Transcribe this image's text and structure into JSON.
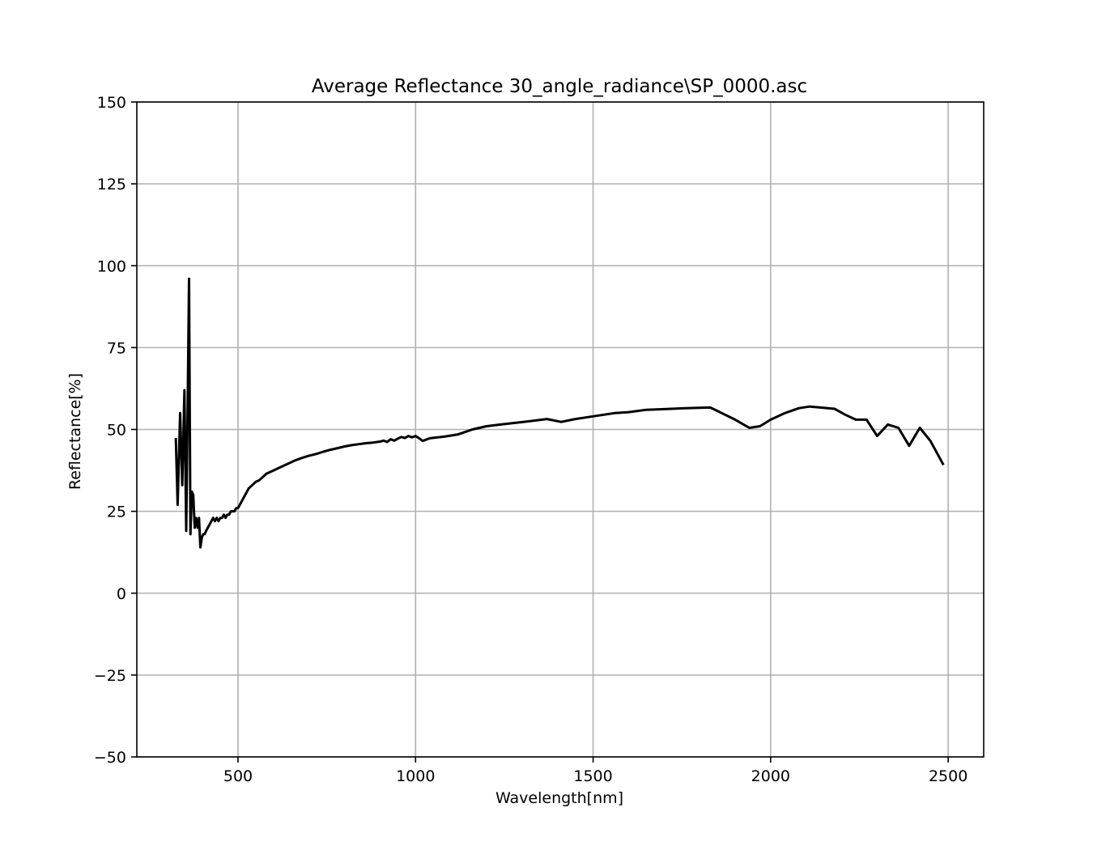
{
  "chart_data": {
    "type": "line",
    "title": "Average Reflectance 30_angle_radiance\\SP_0000.asc",
    "xlabel": "Wavelength[nm]",
    "ylabel": "Reflectance[%]",
    "xlim": [
      215,
      2600
    ],
    "ylim": [
      -50,
      150
    ],
    "xticks": [
      500,
      1000,
      1500,
      2000,
      2500
    ],
    "xtick_labels": [
      "500",
      "1000",
      "1500",
      "2000",
      "2500"
    ],
    "yticks": [
      -50,
      -25,
      0,
      25,
      50,
      75,
      100,
      125,
      150
    ],
    "ytick_labels": [
      "−50",
      "−25",
      "0",
      "25",
      "50",
      "75",
      "100",
      "125",
      "150"
    ],
    "grid": true,
    "line_color": "#000000",
    "series": [
      {
        "x": [
          325,
          330,
          337,
          343,
          349,
          354,
          358,
          362,
          366,
          370,
          374,
          378,
          382,
          386,
          390,
          394,
          398,
          402,
          406,
          410,
          415,
          420,
          425,
          430,
          435,
          440,
          445,
          450,
          455,
          460,
          465,
          470,
          475,
          480,
          485,
          490,
          495,
          500,
          505,
          510,
          515,
          520,
          525,
          530,
          540,
          550,
          560,
          570,
          580,
          590,
          600,
          620,
          640,
          660,
          680,
          700,
          720,
          740,
          760,
          780,
          800,
          820,
          840,
          860,
          880,
          900,
          910,
          920,
          930,
          940,
          950,
          960,
          970,
          980,
          990,
          1000,
          1010,
          1020,
          1040,
          1080,
          1120,
          1160,
          1200,
          1240,
          1280,
          1320,
          1370,
          1410,
          1450,
          1500,
          1560,
          1600,
          1650,
          1700,
          1760,
          1800,
          1830,
          1900,
          1940,
          1970,
          2000,
          2040,
          2080,
          2110,
          2140,
          2180,
          2210,
          2240,
          2270,
          2300,
          2330,
          2360,
          2390,
          2420,
          2450,
          2485
        ],
        "y": [
          47,
          27,
          55,
          33,
          62,
          19,
          55,
          96,
          18,
          31,
          30,
          20,
          23,
          20,
          23,
          14,
          17,
          18,
          18,
          19,
          20,
          21,
          22,
          23,
          22,
          23,
          22,
          23,
          23,
          24,
          23,
          24,
          24,
          25,
          25,
          25,
          26,
          26,
          27,
          28,
          29,
          30,
          31,
          32,
          33,
          34,
          34.5,
          35.5,
          36.5,
          37,
          37.5,
          38.5,
          39.5,
          40.5,
          41.3,
          42,
          42.5,
          43.2,
          43.8,
          44.3,
          44.8,
          45.2,
          45.5,
          45.8,
          46,
          46.3,
          46.6,
          46.2,
          47,
          46.6,
          47.2,
          47.7,
          47.4,
          48,
          47.6,
          48,
          47.3,
          46.5,
          47.3,
          47.8,
          48.5,
          50,
          51,
          51.5,
          52,
          52.5,
          53.2,
          52.3,
          53.2,
          54,
          55,
          55.3,
          56,
          56.2,
          56.5,
          56.6,
          56.7,
          53,
          50.5,
          51,
          53,
          55,
          56.5,
          57,
          56.7,
          56.3,
          54.5,
          53,
          53,
          48,
          51.5,
          50.5,
          45,
          50.5,
          46.5,
          39.5
        ]
      }
    ]
  }
}
